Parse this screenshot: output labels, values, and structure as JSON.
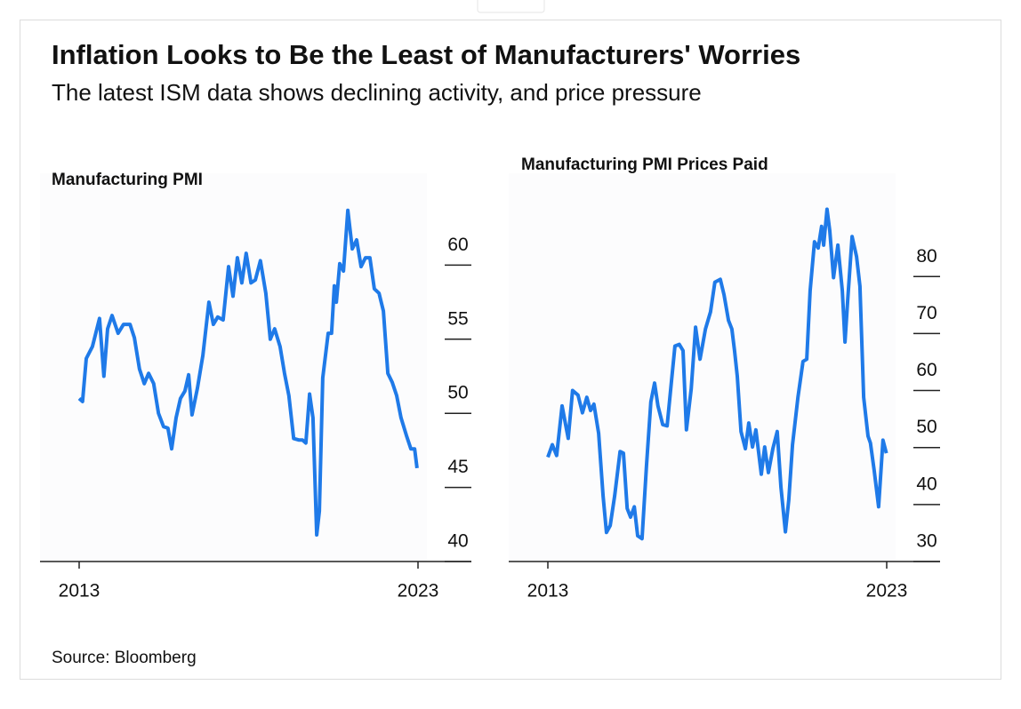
{
  "title": "Inflation Looks to Be the Least of Manufacturers' Worries",
  "subtitle": "The latest ISM data shows declining activity, and price pressure",
  "source": "Source: Bloomberg",
  "chart_data": [
    {
      "type": "line",
      "title": "Manufacturing PMI",
      "color": "#1f7ae8",
      "xlim": [
        2013,
        2023
      ],
      "xticks": [
        2013,
        2023
      ],
      "ylim": [
        40,
        65
      ],
      "yticks": [
        40,
        45,
        50,
        55,
        60
      ],
      "x": [
        2013.0,
        2013.1,
        2013.21,
        2013.39,
        2013.6,
        2013.73,
        2013.84,
        2013.97,
        2014.15,
        2014.31,
        2014.5,
        2014.63,
        2014.78,
        2014.92,
        2015.05,
        2015.2,
        2015.34,
        2015.49,
        2015.62,
        2015.73,
        2015.86,
        2015.99,
        2016.12,
        2016.23,
        2016.33,
        2016.49,
        2016.65,
        2016.83,
        2016.96,
        2017.09,
        2017.25,
        2017.41,
        2017.54,
        2017.67,
        2017.8,
        2017.93,
        2018.07,
        2018.2,
        2018.35,
        2018.51,
        2018.64,
        2018.77,
        2018.93,
        2019.06,
        2019.19,
        2019.33,
        2019.48,
        2019.59,
        2019.69,
        2019.8,
        2019.9,
        2020.01,
        2020.09,
        2020.19,
        2020.35,
        2020.45,
        2020.53,
        2020.59,
        2020.69,
        2020.8,
        2020.93,
        2021.06,
        2021.19,
        2021.32,
        2021.45,
        2021.58,
        2021.71,
        2021.85,
        2021.98,
        2022.11,
        2022.24,
        2022.37,
        2022.5,
        2022.66,
        2022.79,
        2022.9,
        2022.97
      ],
      "values": [
        51.0,
        50.8,
        53.7,
        54.5,
        56.4,
        52.5,
        55.7,
        56.6,
        55.4,
        56.0,
        56.0,
        55.1,
        53.0,
        52.0,
        52.7,
        52.0,
        50.0,
        49.1,
        49.0,
        47.6,
        49.7,
        51.0,
        51.5,
        52.6,
        49.9,
        51.7,
        53.9,
        57.5,
        56.0,
        56.5,
        56.3,
        59.9,
        57.9,
        60.5,
        58.8,
        60.8,
        58.8,
        59.0,
        60.3,
        58.1,
        55.0,
        55.7,
        54.5,
        52.7,
        51.2,
        48.3,
        48.2,
        48.2,
        48.0,
        51.3,
        49.7,
        41.8,
        43.4,
        52.4,
        55.4,
        55.4,
        58.6,
        57.5,
        60.1,
        59.6,
        63.7,
        61.1,
        61.7,
        59.9,
        60.5,
        60.5,
        58.4,
        58.1,
        56.9,
        52.7,
        52.1,
        51.2,
        49.7,
        48.5,
        47.6,
        47.6,
        46.3
      ]
    },
    {
      "type": "line",
      "title": "Manufacturing PMI Prices Paid",
      "color": "#1f7ae8",
      "xlim": [
        2013,
        2023
      ],
      "xticks": [
        2013,
        2023
      ],
      "ylim": [
        30,
        95
      ],
      "yticks": [
        30,
        40,
        50,
        60,
        70,
        80
      ],
      "x": [
        2013.0,
        2013.13,
        2013.26,
        2013.42,
        2013.6,
        2013.73,
        2013.89,
        2014.02,
        2014.15,
        2014.26,
        2014.36,
        2014.5,
        2014.63,
        2014.73,
        2014.84,
        2014.97,
        2015.13,
        2015.23,
        2015.34,
        2015.44,
        2015.55,
        2015.65,
        2015.78,
        2015.91,
        2016.04,
        2016.15,
        2016.25,
        2016.39,
        2016.52,
        2016.65,
        2016.75,
        2016.88,
        2016.99,
        2017.09,
        2017.23,
        2017.36,
        2017.49,
        2017.65,
        2017.8,
        2017.93,
        2018.09,
        2018.2,
        2018.33,
        2018.43,
        2018.51,
        2018.59,
        2018.7,
        2018.83,
        2018.93,
        2019.04,
        2019.14,
        2019.3,
        2019.4,
        2019.51,
        2019.64,
        2019.77,
        2019.88,
        2020.01,
        2020.11,
        2020.22,
        2020.38,
        2020.53,
        2020.64,
        2020.74,
        2020.87,
        2020.98,
        2021.08,
        2021.14,
        2021.24,
        2021.32,
        2021.43,
        2021.56,
        2021.69,
        2021.77,
        2021.85,
        2021.98,
        2022.11,
        2022.21,
        2022.32,
        2022.45,
        2022.52,
        2022.63,
        2022.76,
        2022.89,
        2022.99
      ],
      "values": [
        48.3,
        50.5,
        48.6,
        57.3,
        51.6,
        60.0,
        59.2,
        56.1,
        58.8,
        56.5,
        57.6,
        52.5,
        41.5,
        35.1,
        36.3,
        41.5,
        49.3,
        49.0,
        39.3,
        37.8,
        39.6,
        34.5,
        34.0,
        46.8,
        58.0,
        61.3,
        57.3,
        54.0,
        53.8,
        61.8,
        67.8,
        68.1,
        67.0,
        53.1,
        60.3,
        71.1,
        65.5,
        70.8,
        73.8,
        79.0,
        79.5,
        76.8,
        72.3,
        70.8,
        67.0,
        62.5,
        52.8,
        49.8,
        54.3,
        50.1,
        53.1,
        45.3,
        50.1,
        45.6,
        49.8,
        52.8,
        43.0,
        35.2,
        40.8,
        50.5,
        58.8,
        65.1,
        65.5,
        77.5,
        86.1,
        85.0,
        88.8,
        85.5,
        91.8,
        88.0,
        79.8,
        85.5,
        77.5,
        68.5,
        76.0,
        87.0,
        83.5,
        78.3,
        58.8,
        52.0,
        50.8,
        46.0,
        39.6,
        51.3,
        49.0
      ]
    }
  ]
}
